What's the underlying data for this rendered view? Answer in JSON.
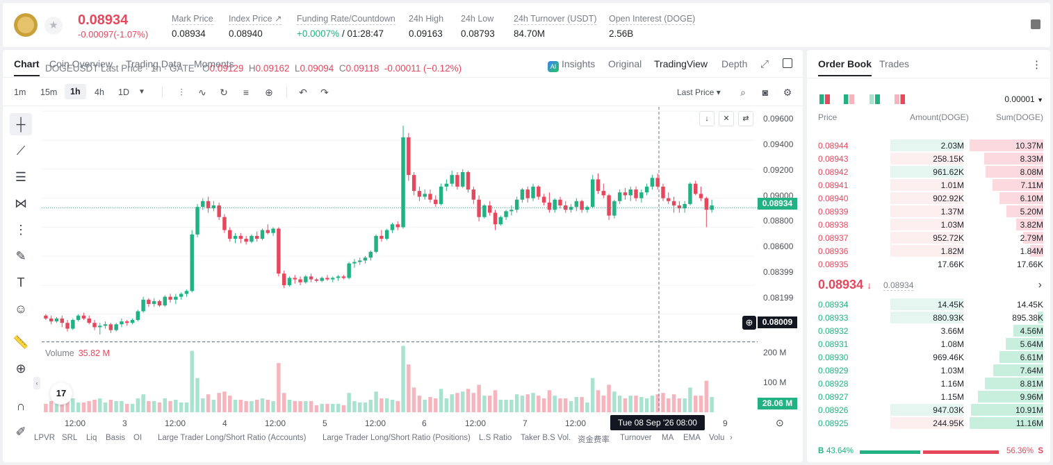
{
  "ticker": {
    "last_price": "0.08934",
    "change": "-0.00097(-1.07%)",
    "stats": [
      {
        "label": "Mark Price",
        "value": "0.08934"
      },
      {
        "label": "Index Price ↗",
        "value": "0.08940"
      },
      {
        "label": "Funding Rate/Countdown",
        "value_green": "+0.0007%",
        "value": " / 01:28:47"
      },
      {
        "label": "24h High",
        "value": "0.09163"
      },
      {
        "label": "24h Low",
        "value": "0.08793"
      },
      {
        "label": "24h Turnover (USDT)",
        "value": "84.70M"
      },
      {
        "label": "Open Interest (DOGE)",
        "value": "2.56B"
      }
    ]
  },
  "chart_tabs": {
    "left": [
      "Chart",
      "Coin Overview",
      "Trading Data",
      "Moments"
    ],
    "right": [
      "Insights",
      "Original",
      "TradingView",
      "Depth"
    ],
    "ai_badge": "AI"
  },
  "toolbar": {
    "intervals": [
      "1m",
      "15m",
      "1h",
      "4h",
      "1D"
    ],
    "price_type": "Last Price ▾"
  },
  "chart_legend": {
    "symbol": "DOGEUSDT Last Price · 1h · GATE",
    "o_label": "O",
    "o": "0.09129",
    "h_label": "H",
    "h": "0.09162",
    "l_label": "L",
    "l": "0.09094",
    "c_label": "C",
    "c": "0.09118",
    "chg": "-0.00011 (−0.12%)"
  },
  "volume_legend": {
    "label": "Volume",
    "value": "35.82 M"
  },
  "price_axis": [
    "0.09600",
    "0.09400",
    "0.09200",
    "0.09000",
    "0.08800",
    "0.08600",
    "0.08399",
    "0.08199"
  ],
  "volume_axis": [
    "200 M",
    "100 M"
  ],
  "price_tags": {
    "current": "0.08934",
    "crosshair": "0.08009",
    "volume": "28.06 M"
  },
  "time_axis": [
    "12:00",
    "3",
    "12:00",
    "4",
    "12:00",
    "5",
    "12:00",
    "6",
    "12:00",
    "7",
    "12:00",
    "9"
  ],
  "crosshair_time": "Tue 08 Sep '26   08:00",
  "tv_logo": "17",
  "indicators": [
    "LPVR",
    "SRL",
    "Liq",
    "Basis",
    "OI",
    "Large Trader Long/Short Ratio (Accounts)",
    "Large Trader Long/Short Ratio (Positions)",
    "L.S Ratio",
    "Taker B.S Vol.",
    "资金费率",
    "Turnover",
    "MA",
    "EMA",
    "Volu"
  ],
  "colors": {
    "up": "#21b182",
    "down": "#e5475d"
  },
  "chart_data": {
    "type": "candlestick",
    "title": "DOGEUSDT Last Price · 1h · GATE",
    "ylim": [
      0.0805,
      0.0963
    ],
    "candles": [
      [
        0.0819,
        0.082,
        0.0816,
        0.0817
      ],
      [
        0.0817,
        0.0819,
        0.0813,
        0.0815
      ],
      [
        0.0815,
        0.0818,
        0.0814,
        0.0817
      ],
      [
        0.0817,
        0.0819,
        0.0811,
        0.0814
      ],
      [
        0.0814,
        0.0816,
        0.0808,
        0.081
      ],
      [
        0.081,
        0.0817,
        0.0809,
        0.0816
      ],
      [
        0.0816,
        0.082,
        0.0815,
        0.0819
      ],
      [
        0.0819,
        0.0821,
        0.0816,
        0.0817
      ],
      [
        0.0817,
        0.0819,
        0.0813,
        0.0814
      ],
      [
        0.0814,
        0.0816,
        0.0809,
        0.0811
      ],
      [
        0.0811,
        0.0814,
        0.0806,
        0.0812
      ],
      [
        0.0812,
        0.0815,
        0.081,
        0.0813
      ],
      [
        0.0813,
        0.0814,
        0.0807,
        0.0809
      ],
      [
        0.0809,
        0.0814,
        0.0808,
        0.0813
      ],
      [
        0.0813,
        0.0817,
        0.0811,
        0.0815
      ],
      [
        0.0815,
        0.0816,
        0.0812,
        0.0814
      ],
      [
        0.0814,
        0.0817,
        0.0813,
        0.0816
      ],
      [
        0.0816,
        0.0823,
        0.0815,
        0.0822
      ],
      [
        0.0822,
        0.0832,
        0.0821,
        0.083
      ],
      [
        0.083,
        0.0831,
        0.0825,
        0.0827
      ],
      [
        0.0827,
        0.0831,
        0.0825,
        0.0829
      ],
      [
        0.0829,
        0.083,
        0.0825,
        0.0826
      ],
      [
        0.0826,
        0.0833,
        0.0825,
        0.0832
      ],
      [
        0.0832,
        0.0834,
        0.0828,
        0.083
      ],
      [
        0.083,
        0.0834,
        0.0827,
        0.0832
      ],
      [
        0.0832,
        0.0835,
        0.083,
        0.0834
      ],
      [
        0.0834,
        0.0837,
        0.0832,
        0.0836
      ],
      [
        0.0836,
        0.0878,
        0.0835,
        0.0875
      ],
      [
        0.0875,
        0.0896,
        0.0873,
        0.0894
      ],
      [
        0.0894,
        0.09,
        0.0892,
        0.0898
      ],
      [
        0.0898,
        0.0901,
        0.089,
        0.0893
      ],
      [
        0.0893,
        0.0898,
        0.0891,
        0.0895
      ],
      [
        0.0895,
        0.0897,
        0.0885,
        0.0887
      ],
      [
        0.0887,
        0.0889,
        0.0876,
        0.0878
      ],
      [
        0.0878,
        0.088,
        0.087,
        0.0872
      ],
      [
        0.0872,
        0.0876,
        0.0869,
        0.0874
      ],
      [
        0.0874,
        0.0876,
        0.0869,
        0.0872
      ],
      [
        0.0872,
        0.0874,
        0.0868,
        0.087
      ],
      [
        0.087,
        0.0875,
        0.0869,
        0.0874
      ],
      [
        0.0874,
        0.0877,
        0.087,
        0.0872
      ],
      [
        0.0872,
        0.0879,
        0.0871,
        0.0878
      ],
      [
        0.0878,
        0.0882,
        0.0875,
        0.0876
      ],
      [
        0.0876,
        0.088,
        0.0874,
        0.0879
      ],
      [
        0.0879,
        0.088,
        0.0846,
        0.0848
      ],
      [
        0.0848,
        0.085,
        0.0838,
        0.084
      ],
      [
        0.084,
        0.0846,
        0.0839,
        0.0845
      ],
      [
        0.0845,
        0.0847,
        0.0841,
        0.0844
      ],
      [
        0.0844,
        0.0846,
        0.084,
        0.0842
      ],
      [
        0.0842,
        0.0847,
        0.0841,
        0.0846
      ],
      [
        0.0846,
        0.0848,
        0.0842,
        0.0844
      ],
      [
        0.0844,
        0.0845,
        0.0842,
        0.0843
      ],
      [
        0.0843,
        0.0846,
        0.0842,
        0.0845
      ],
      [
        0.0845,
        0.0847,
        0.0843,
        0.0844
      ],
      [
        0.0844,
        0.0846,
        0.0842,
        0.0845
      ],
      [
        0.0845,
        0.0847,
        0.0843,
        0.0846
      ],
      [
        0.0846,
        0.0847,
        0.0844,
        0.0845
      ],
      [
        0.0845,
        0.0856,
        0.0844,
        0.0855
      ],
      [
        0.0855,
        0.0858,
        0.0852,
        0.0856
      ],
      [
        0.0856,
        0.0859,
        0.0854,
        0.0857
      ],
      [
        0.0857,
        0.086,
        0.0855,
        0.0859
      ],
      [
        0.0859,
        0.0864,
        0.0857,
        0.0863
      ],
      [
        0.0863,
        0.0875,
        0.0862,
        0.0874
      ],
      [
        0.0874,
        0.0878,
        0.087,
        0.0872
      ],
      [
        0.0872,
        0.0879,
        0.0871,
        0.0878
      ],
      [
        0.0878,
        0.0883,
        0.0876,
        0.0882
      ],
      [
        0.0882,
        0.0884,
        0.0878,
        0.088
      ],
      [
        0.088,
        0.095,
        0.0879,
        0.0942
      ],
      [
        0.0942,
        0.0945,
        0.0912,
        0.0916
      ],
      [
        0.0916,
        0.0918,
        0.0902,
        0.0905
      ],
      [
        0.0905,
        0.0908,
        0.0898,
        0.0901
      ],
      [
        0.0901,
        0.0906,
        0.0899,
        0.0903
      ],
      [
        0.0903,
        0.0906,
        0.0897,
        0.0899
      ],
      [
        0.0899,
        0.0902,
        0.0894,
        0.0896
      ],
      [
        0.0896,
        0.091,
        0.0895,
        0.0908
      ],
      [
        0.0908,
        0.0913,
        0.0905,
        0.091
      ],
      [
        0.091,
        0.0919,
        0.0908,
        0.0916
      ],
      [
        0.0916,
        0.0918,
        0.0906,
        0.0908
      ],
      [
        0.0908,
        0.092,
        0.0907,
        0.0918
      ],
      [
        0.0918,
        0.0919,
        0.0904,
        0.0906
      ],
      [
        0.0906,
        0.0908,
        0.0896,
        0.0899
      ],
      [
        0.0899,
        0.0902,
        0.0884,
        0.0887
      ],
      [
        0.0887,
        0.0896,
        0.0886,
        0.0895
      ],
      [
        0.0895,
        0.0898,
        0.0888,
        0.089
      ],
      [
        0.089,
        0.0892,
        0.0878,
        0.0882
      ],
      [
        0.0882,
        0.0888,
        0.0881,
        0.0887
      ],
      [
        0.0887,
        0.0892,
        0.0885,
        0.0891
      ],
      [
        0.0891,
        0.0895,
        0.0888,
        0.0892
      ],
      [
        0.0892,
        0.0901,
        0.089,
        0.0899
      ],
      [
        0.0899,
        0.0907,
        0.0897,
        0.0906
      ],
      [
        0.0906,
        0.0908,
        0.0897,
        0.09
      ],
      [
        0.09,
        0.091,
        0.0898,
        0.0908
      ],
      [
        0.0908,
        0.0909,
        0.0899,
        0.0901
      ],
      [
        0.0901,
        0.0903,
        0.0895,
        0.0897
      ],
      [
        0.0897,
        0.0904,
        0.089,
        0.0892
      ],
      [
        0.0892,
        0.09,
        0.089,
        0.0899
      ],
      [
        0.0899,
        0.0901,
        0.0893,
        0.0895
      ],
      [
        0.0895,
        0.0898,
        0.089,
        0.0892
      ],
      [
        0.0892,
        0.0896,
        0.089,
        0.0894
      ],
      [
        0.0894,
        0.09,
        0.0891,
        0.0898
      ],
      [
        0.0898,
        0.0899,
        0.089,
        0.0892
      ],
      [
        0.0892,
        0.0895,
        0.089,
        0.0894
      ],
      [
        0.0894,
        0.0916,
        0.0893,
        0.0913
      ],
      [
        0.0913,
        0.0917,
        0.0903,
        0.0905
      ],
      [
        0.0905,
        0.091,
        0.09,
        0.0902
      ],
      [
        0.0902,
        0.0903,
        0.0885,
        0.0888
      ],
      [
        0.0888,
        0.0899,
        0.0886,
        0.0898
      ],
      [
        0.0898,
        0.0906,
        0.0896,
        0.0904
      ],
      [
        0.0904,
        0.0907,
        0.0899,
        0.0902
      ],
      [
        0.0902,
        0.0908,
        0.0898,
        0.0906
      ],
      [
        0.0906,
        0.0908,
        0.0898,
        0.09
      ],
      [
        0.09,
        0.0906,
        0.0897,
        0.0904
      ],
      [
        0.0904,
        0.091,
        0.0902,
        0.0908
      ],
      [
        0.0908,
        0.0916,
        0.0906,
        0.0914
      ],
      [
        0.0914,
        0.0917,
        0.0906,
        0.0908
      ],
      [
        0.0908,
        0.091,
        0.0898,
        0.09
      ],
      [
        0.09,
        0.0904,
        0.0896,
        0.0898
      ],
      [
        0.0898,
        0.0901,
        0.089,
        0.0895
      ],
      [
        0.0895,
        0.0898,
        0.089,
        0.0893
      ],
      [
        0.0893,
        0.0898,
        0.089,
        0.0896
      ],
      [
        0.0896,
        0.0911,
        0.0895,
        0.091
      ],
      [
        0.091,
        0.0912,
        0.0902,
        0.0903
      ],
      [
        0.0903,
        0.0908,
        0.0898,
        0.09
      ],
      [
        0.09,
        0.0901,
        0.088,
        0.0892
      ],
      [
        0.0892,
        0.0899,
        0.089,
        0.0895
      ]
    ],
    "volume_ylim": [
      0,
      230
    ],
    "volume_unit": "M"
  },
  "order_book": {
    "tabs": [
      "Order Book",
      "Trades"
    ],
    "precision": "0.00001",
    "headers": [
      "Price",
      "Amount(DOGE)",
      "Sum(DOGE)"
    ],
    "asks": [
      {
        "price": "0.08944",
        "amount": "2.03M",
        "sum": "10.37M",
        "amt_frac": 0.9,
        "sum_frac": 1.0,
        "green": true
      },
      {
        "price": "0.08943",
        "amount": "258.15K",
        "sum": "8.33M",
        "amt_frac": 0.12,
        "sum_frac": 0.8
      },
      {
        "price": "0.08942",
        "amount": "961.62K",
        "sum": "8.08M",
        "amt_frac": 0.9,
        "sum_frac": 0.78,
        "green": true
      },
      {
        "price": "0.08941",
        "amount": "1.01M",
        "sum": "7.11M",
        "amt_frac": 0.9,
        "sum_frac": 0.69
      },
      {
        "price": "0.08940",
        "amount": "902.92K",
        "sum": "6.10M",
        "amt_frac": 0.4,
        "sum_frac": 0.59
      },
      {
        "price": "0.08939",
        "amount": "1.37M",
        "sum": "5.20M",
        "amt_frac": 0.9,
        "sum_frac": 0.5
      },
      {
        "price": "0.08938",
        "amount": "1.03M",
        "sum": "3.82M",
        "amt_frac": 0.9,
        "sum_frac": 0.37
      },
      {
        "price": "0.08937",
        "amount": "952.72K",
        "sum": "2.79M",
        "amt_frac": 0.2,
        "sum_frac": 0.27
      },
      {
        "price": "0.08936",
        "amount": "1.82M",
        "sum": "1.84M",
        "amt_frac": 0.2,
        "sum_frac": 0.18
      },
      {
        "price": "0.08935",
        "amount": "17.66K",
        "sum": "17.66K",
        "amt_frac": 0.0,
        "sum_frac": 0.0
      }
    ],
    "mid_price": "0.08934",
    "mid_arrow": "↓",
    "mid_mark": "0.08934",
    "bids": [
      {
        "price": "0.08934",
        "amount": "14.45K",
        "sum": "14.45K",
        "amt_frac": 0.9,
        "sum_frac": 0.0
      },
      {
        "price": "0.08933",
        "amount": "880.93K",
        "sum": "895.38K",
        "amt_frac": 0.1,
        "sum_frac": 0.08
      },
      {
        "price": "0.08932",
        "amount": "3.66M",
        "sum": "4.56M",
        "amt_frac": 0.0,
        "sum_frac": 0.41
      },
      {
        "price": "0.08931",
        "amount": "1.08M",
        "sum": "5.64M",
        "amt_frac": 0.0,
        "sum_frac": 0.51
      },
      {
        "price": "0.08930",
        "amount": "969.46K",
        "sum": "6.61M",
        "amt_frac": 0.0,
        "sum_frac": 0.59
      },
      {
        "price": "0.08929",
        "amount": "1.03M",
        "sum": "7.64M",
        "amt_frac": 0.0,
        "sum_frac": 0.68
      },
      {
        "price": "0.08928",
        "amount": "1.16M",
        "sum": "8.81M",
        "amt_frac": 0.0,
        "sum_frac": 0.79
      },
      {
        "price": "0.08927",
        "amount": "1.15M",
        "sum": "9.96M",
        "amt_frac": 0.0,
        "sum_frac": 0.89
      },
      {
        "price": "0.08926",
        "amount": "947.03K",
        "sum": "10.91M",
        "amt_frac": 0.9,
        "sum_frac": 0.98
      },
      {
        "price": "0.08925",
        "amount": "244.95K",
        "sum": "11.16M",
        "amt_frac": 0.9,
        "sum_frac": 1.0,
        "red": true
      }
    ],
    "buy_label": "B",
    "buy_pct": "43.64%",
    "buy_frac": 0.4364,
    "sell_label": "S",
    "sell_pct": "56.36%"
  }
}
